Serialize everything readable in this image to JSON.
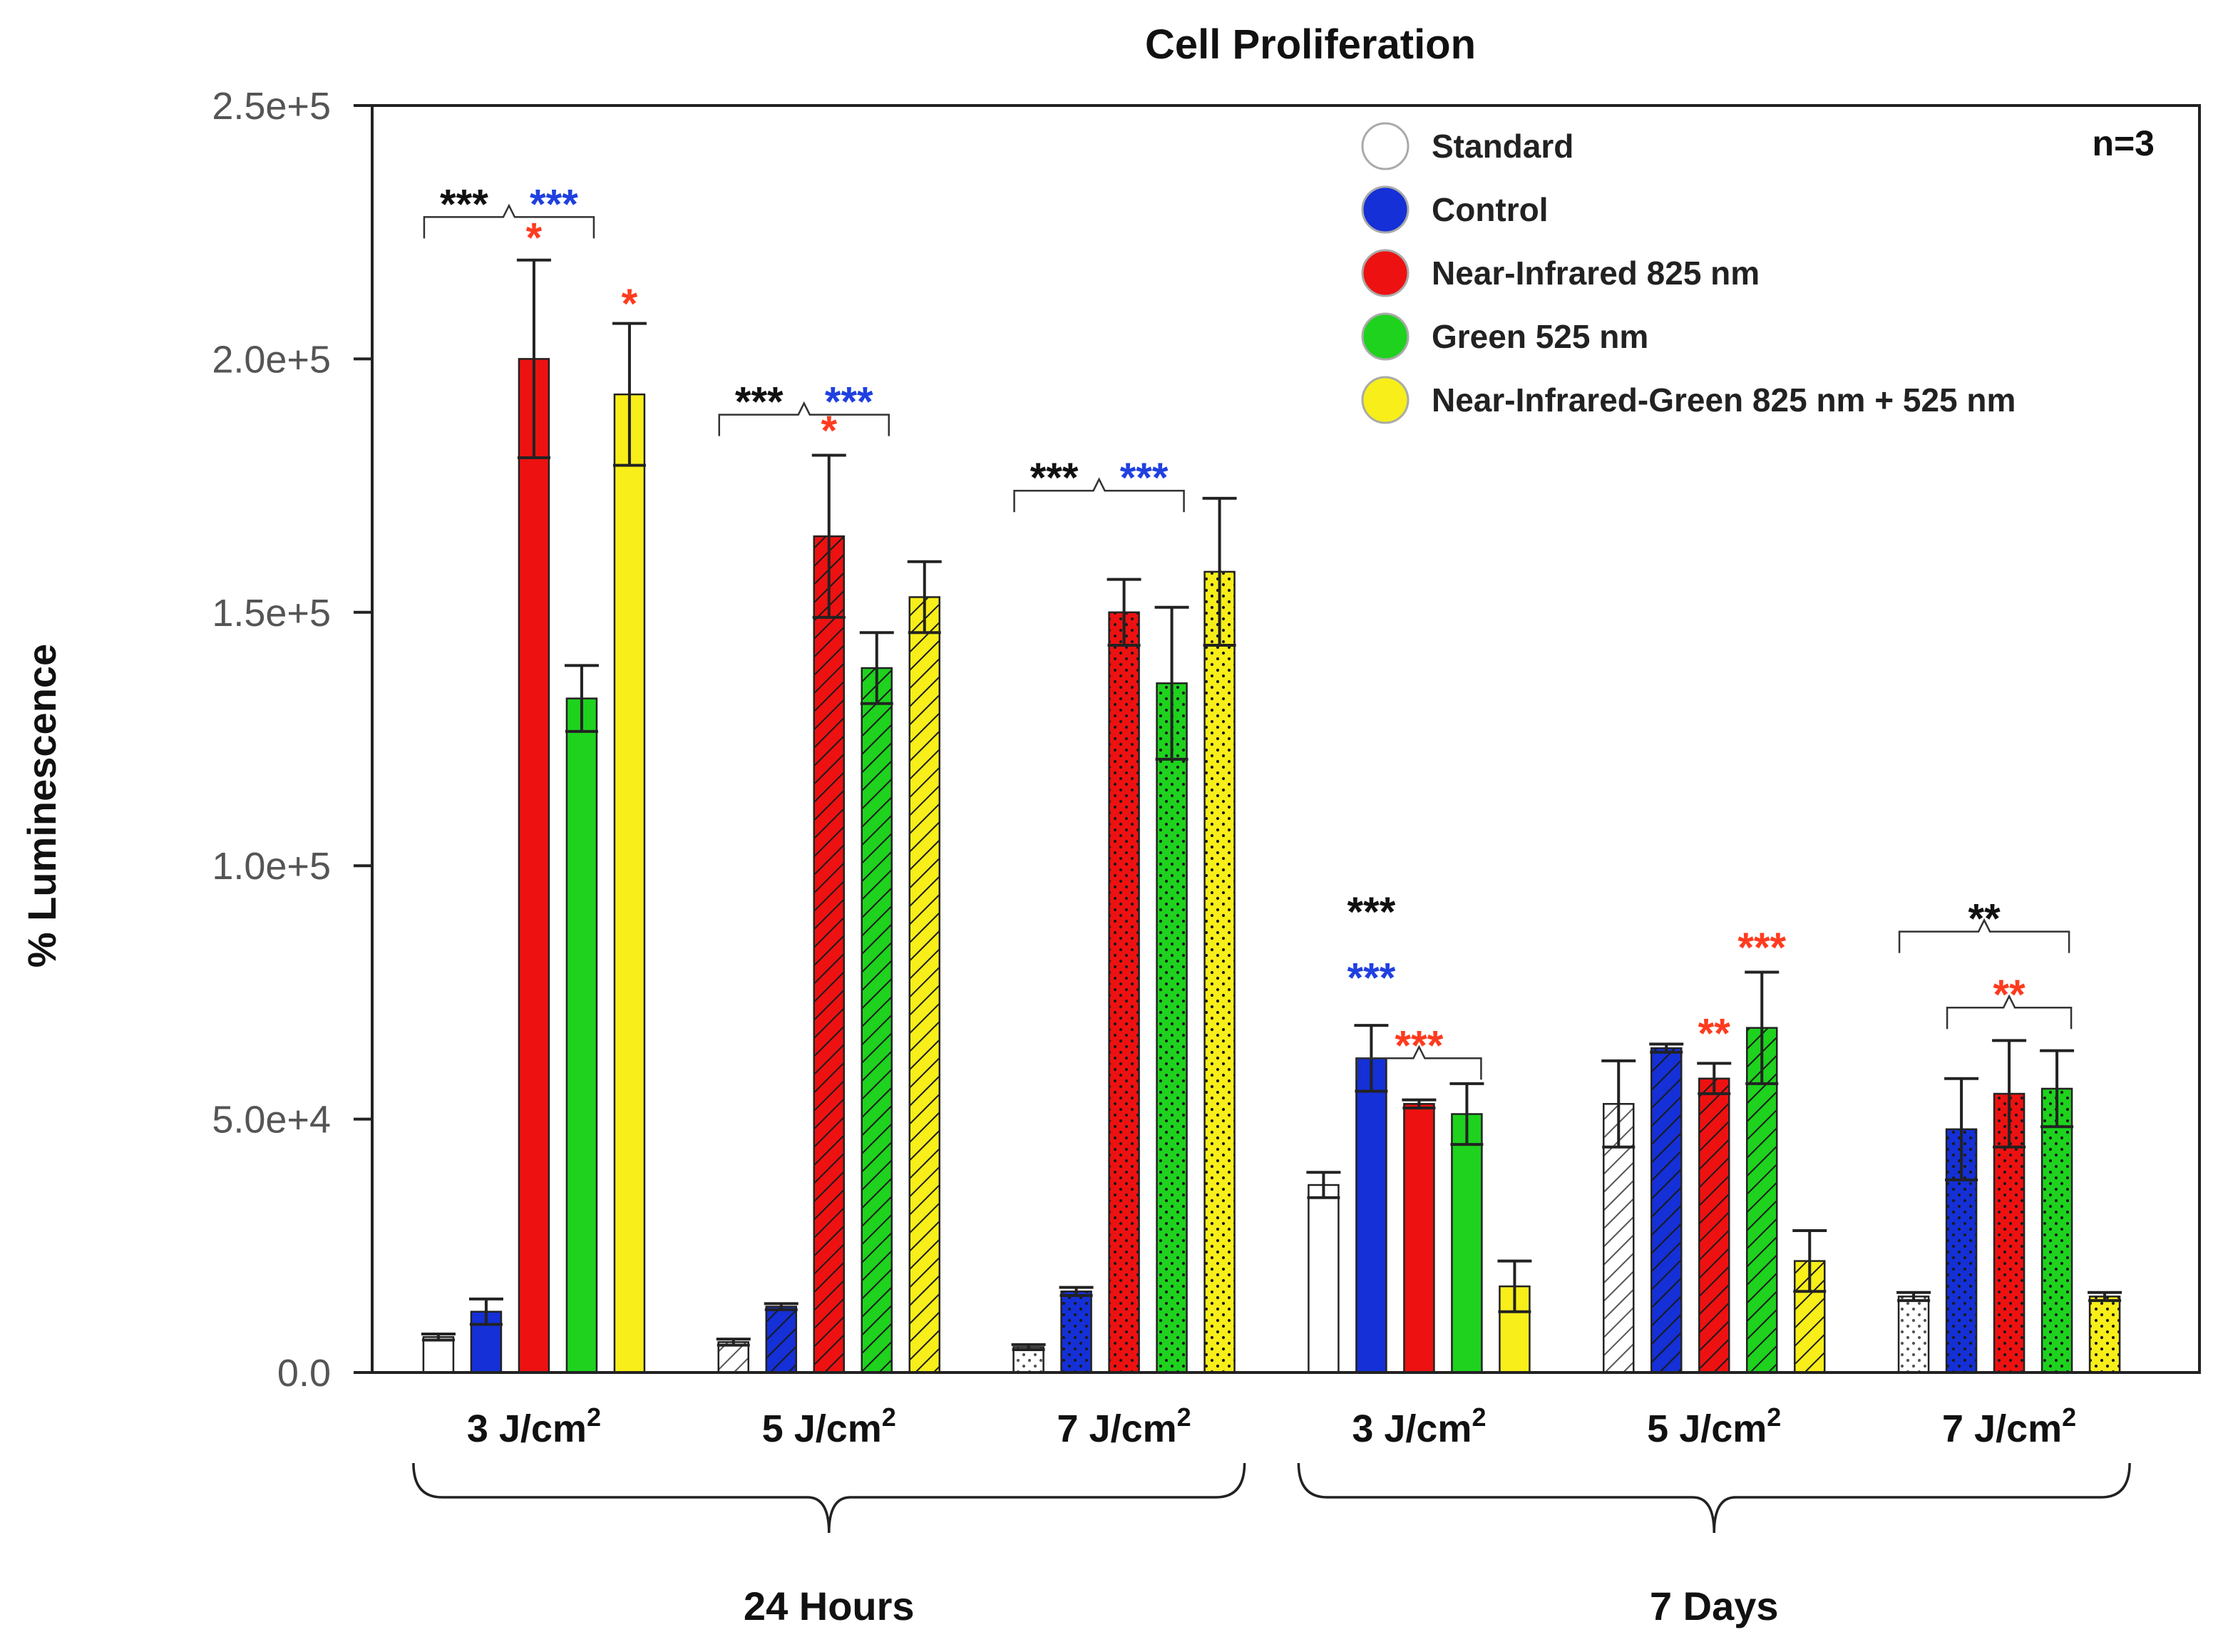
{
  "chart_data": {
    "type": "bar",
    "title": "Cell Proliferation",
    "ylabel": "% Luminescence",
    "xlabel": "",
    "ylim": [
      0,
      250000
    ],
    "y_ticks": [
      0,
      50000,
      100000,
      150000,
      200000,
      250000
    ],
    "y_tick_labels": [
      "0.0",
      "5.0e+4",
      "1.0e+5",
      "1.5e+5",
      "2.0e+5",
      "2.5e+5"
    ],
    "sample_note": "n=3",
    "categories": [
      "3 J/cm",
      "5 J/cm",
      "7 J/cm",
      "3 J/cm",
      "5 J/cm",
      "7 J/cm"
    ],
    "category_superscript": "2",
    "groups": [
      {
        "label": "24 Hours",
        "categories": [
          0,
          1,
          2
        ]
      },
      {
        "label": "7 Days",
        "categories": [
          3,
          4,
          5
        ]
      }
    ],
    "series": [
      {
        "name": "Standard",
        "color": "#ffffff",
        "values": [
          7000,
          6000,
          5000,
          37000,
          53000,
          15000
        ],
        "errors": [
          600,
          600,
          500,
          2500,
          8500,
          800
        ],
        "patterns": [
          "solid",
          "hatch",
          "dots",
          "solid",
          "hatch",
          "dots"
        ]
      },
      {
        "name": "Control",
        "color": "#1430d6",
        "values": [
          12000,
          13000,
          16000,
          62000,
          64000,
          48000
        ],
        "errors": [
          2500,
          600,
          800,
          6500,
          800,
          10000
        ],
        "patterns": [
          "solid",
          "hatch",
          "dots",
          "solid",
          "hatch",
          "dots"
        ]
      },
      {
        "name": "Near-Infrared 825 nm",
        "color": "#ee1111",
        "values": [
          200000,
          165000,
          150000,
          53000,
          58000,
          55000
        ],
        "errors": [
          19500,
          16000,
          6500,
          800,
          3000,
          10500
        ],
        "patterns": [
          "solid",
          "hatch",
          "dots",
          "solid",
          "hatch",
          "dots"
        ]
      },
      {
        "name": "Green 525 nm",
        "color": "#1ed21e",
        "values": [
          133000,
          139000,
          136000,
          51000,
          68000,
          56000
        ],
        "errors": [
          6500,
          7000,
          15000,
          6000,
          11000,
          7500
        ],
        "patterns": [
          "solid",
          "hatch",
          "dots",
          "solid",
          "hatch",
          "dots"
        ]
      },
      {
        "name": "Near-Infrared-Green 825 nm + 525 nm",
        "color": "#f7ee1a",
        "values": [
          193000,
          153000,
          158000,
          17000,
          22000,
          15000
        ],
        "errors": [
          14000,
          7000,
          14500,
          5000,
          6000,
          800
        ],
        "patterns": [
          "solid",
          "hatch",
          "dots",
          "solid",
          "hatch",
          "dots"
        ]
      }
    ],
    "annotations": [
      {
        "category": 0,
        "row": "top",
        "texts": [
          {
            "text": "***",
            "color": "#111111"
          },
          {
            "text": "***",
            "color": "#2040e0"
          }
        ],
        "bracket": [
          0,
          2
        ],
        "level": 228000
      },
      {
        "category": 0,
        "bar": 2,
        "texts": [
          {
            "text": "*",
            "color": "#ff3b1f"
          }
        ],
        "level": 225000
      },
      {
        "category": 0,
        "bar": 4,
        "texts": [
          {
            "text": "*",
            "color": "#ff3b1f"
          }
        ],
        "level": 212000
      },
      {
        "category": 1,
        "row": "top",
        "texts": [
          {
            "text": "***",
            "color": "#111111"
          },
          {
            "text": "***",
            "color": "#2040e0"
          }
        ],
        "bracket": [
          0,
          2
        ],
        "level": 189000
      },
      {
        "category": 1,
        "bar": 2,
        "texts": [
          {
            "text": "*",
            "color": "#ff3b1f"
          }
        ],
        "level": 187000
      },
      {
        "category": 2,
        "row": "top",
        "texts": [
          {
            "text": "***",
            "color": "#111111"
          },
          {
            "text": "***",
            "color": "#2040e0"
          }
        ],
        "bracket": [
          0,
          2
        ],
        "level": 174000
      },
      {
        "category": 3,
        "bar": 1,
        "texts": [
          {
            "text": "***",
            "color": "#111111"
          }
        ],
        "level": 92000
      },
      {
        "category": 3,
        "bar": 1,
        "texts": [
          {
            "text": "***",
            "color": "#2040e0"
          }
        ],
        "level": 79000
      },
      {
        "category": 3,
        "row": "sub",
        "texts": [
          {
            "text": "***",
            "color": "#ff3b1f"
          }
        ],
        "bracket": [
          1,
          3
        ],
        "level": 62000
      },
      {
        "category": 4,
        "bar": 3,
        "texts": [
          {
            "text": "***",
            "color": "#ff3b1f"
          }
        ],
        "level": 85000
      },
      {
        "category": 4,
        "bar": 2,
        "texts": [
          {
            "text": "**",
            "color": "#ff3b1f"
          }
        ],
        "level": 68000
      },
      {
        "category": 5,
        "row": "top",
        "texts": [
          {
            "text": "**",
            "color": "#111111"
          }
        ],
        "bracket": [
          0,
          2
        ],
        "level": 87000
      },
      {
        "category": 5,
        "row": "sub",
        "texts": [
          {
            "text": "**",
            "color": "#ff3b1f"
          }
        ],
        "bracket": [
          1,
          3
        ],
        "level": 72000
      }
    ]
  }
}
